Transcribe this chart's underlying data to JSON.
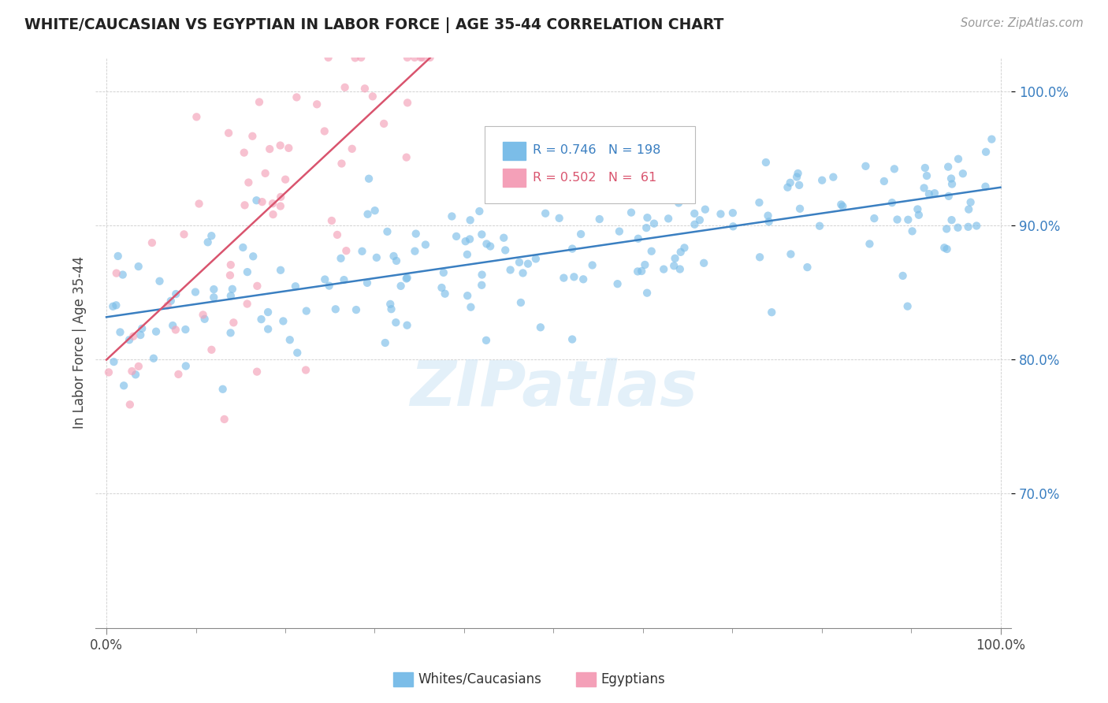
{
  "title": "WHITE/CAUCASIAN VS EGYPTIAN IN LABOR FORCE | AGE 35-44 CORRELATION CHART",
  "source": "Source: ZipAtlas.com",
  "ylabel": "In Labor Force | Age 35-44",
  "watermark": "ZIPatlas",
  "blue_color": "#7bbde8",
  "pink_color": "#f4a0b8",
  "blue_line_color": "#3a7fc1",
  "pink_line_color": "#d9546e",
  "R_blue": 0.746,
  "N_blue": 198,
  "R_pink": 0.502,
  "N_pink": 61,
  "ylim_low": 0.6,
  "ylim_high": 1.025,
  "ytick_vals": [
    0.7,
    0.8,
    0.9,
    1.0
  ],
  "ytick_labels": [
    "70.0%",
    "80.0%",
    "90.0%",
    "100.0%"
  ],
  "blue_seed": 12,
  "pink_seed": 7
}
